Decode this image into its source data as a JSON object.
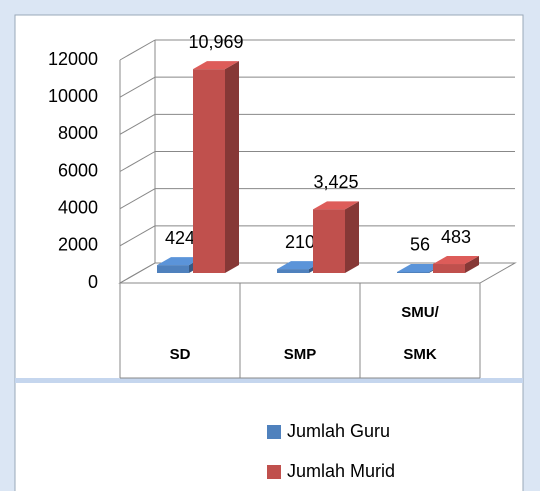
{
  "chart_data": {
    "type": "bar3d",
    "categories": [
      "SD",
      "SMP",
      "SMU/ SMK"
    ],
    "series": [
      {
        "name": "Jumlah Guru",
        "color": "#4f81bd",
        "values": [
          424,
          210,
          56
        ]
      },
      {
        "name": "Jumlah Murid",
        "color": "#c0504d",
        "values": [
          10969,
          3425,
          483
        ],
        "value_labels": [
          "10,969",
          "3,425",
          "483"
        ]
      }
    ],
    "ylim": [
      0,
      12000
    ],
    "yticks": [
      0,
      2000,
      4000,
      6000,
      8000,
      10000,
      12000
    ],
    "grid": true,
    "legend": "bottom"
  }
}
